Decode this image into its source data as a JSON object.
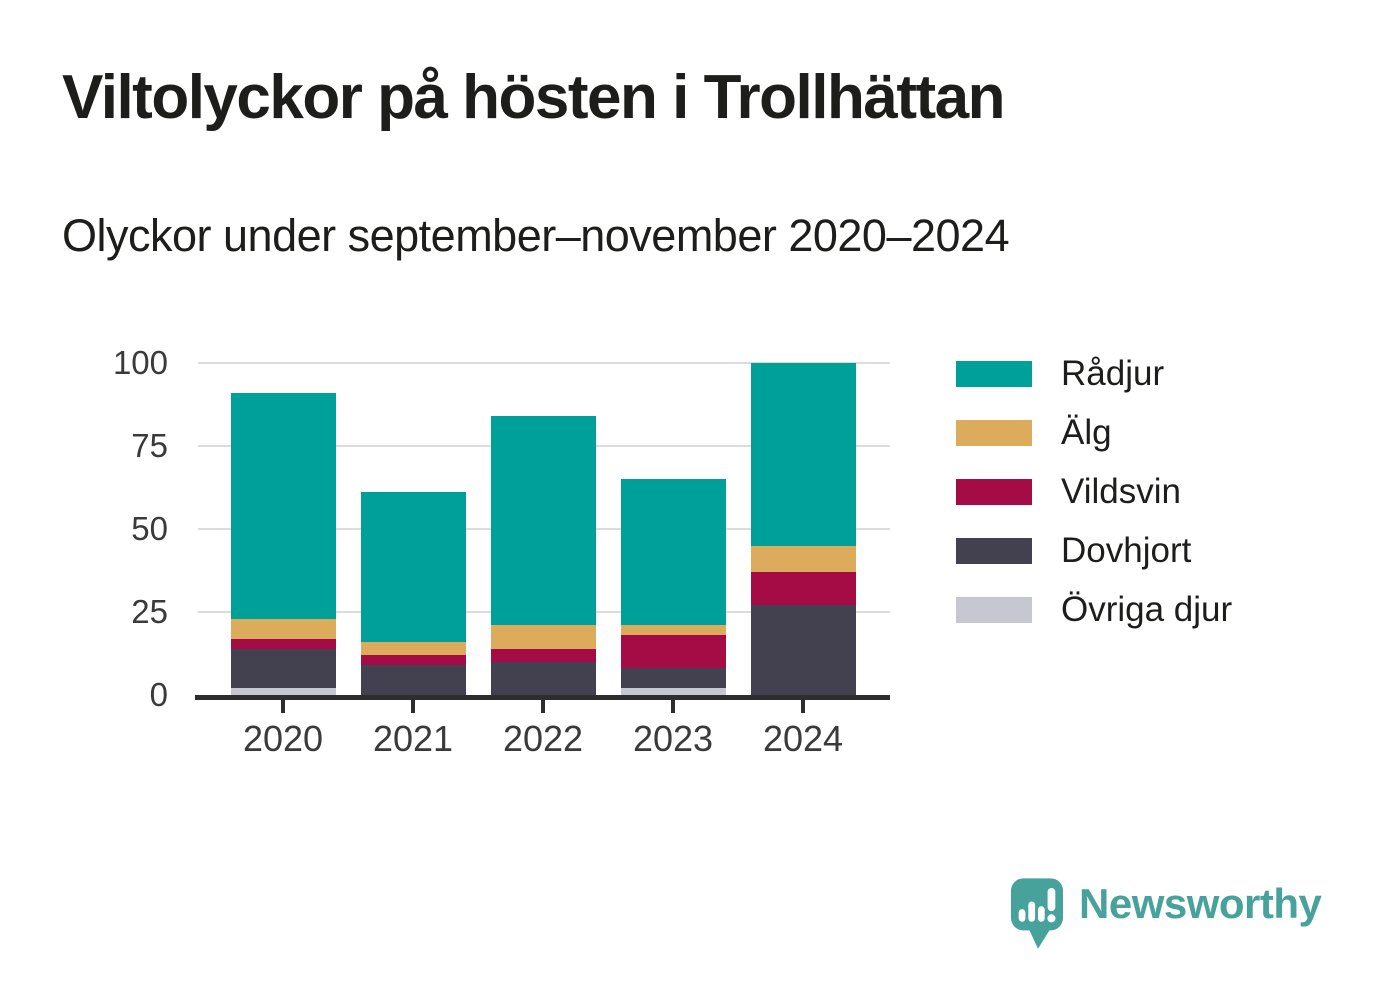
{
  "header": {
    "title": "Viltolyckor på hösten i Trollhättan",
    "subtitle": "Olyckor under september–november 2020–2024"
  },
  "chart_data": {
    "type": "bar",
    "stacked": true,
    "title": "Viltolyckor på hösten i Trollhättan",
    "subtitle": "Olyckor under september–november 2020–2024",
    "categories": [
      "2020",
      "2021",
      "2022",
      "2023",
      "2024"
    ],
    "series": [
      {
        "name": "Rådjur",
        "color": "#00a09a",
        "values": [
          68,
          45,
          63,
          44,
          55
        ]
      },
      {
        "name": "Älg",
        "color": "#dcab5b",
        "values": [
          6,
          4,
          7,
          3,
          8
        ]
      },
      {
        "name": "Vildsvin",
        "color": "#a50b45",
        "values": [
          3,
          3,
          4,
          10,
          10
        ]
      },
      {
        "name": "Dovhjort",
        "color": "#434150",
        "values": [
          12,
          9,
          10,
          6,
          27
        ]
      },
      {
        "name": "Övriga djur",
        "color": "#c6c7d1",
        "values": [
          2,
          0,
          0,
          2,
          0
        ]
      }
    ],
    "totals": [
      91,
      61,
      84,
      65,
      100
    ],
    "xlabel": "",
    "ylabel": "",
    "ylim": [
      0,
      100
    ],
    "yticks": [
      0,
      25,
      50,
      75,
      100
    ],
    "grid": true,
    "legend_position": "right"
  },
  "footer": {
    "brand": "Newsworthy",
    "brand_color": "#47a29c",
    "logo_icon": "speech-bubble-bar-chart-icon"
  },
  "colors": {
    "background": "#ffffff",
    "axis": "#2d2d2d",
    "grid": "#dcdcdc",
    "tick_text": "#3a3a3a",
    "title_text": "#1d1d1b"
  }
}
